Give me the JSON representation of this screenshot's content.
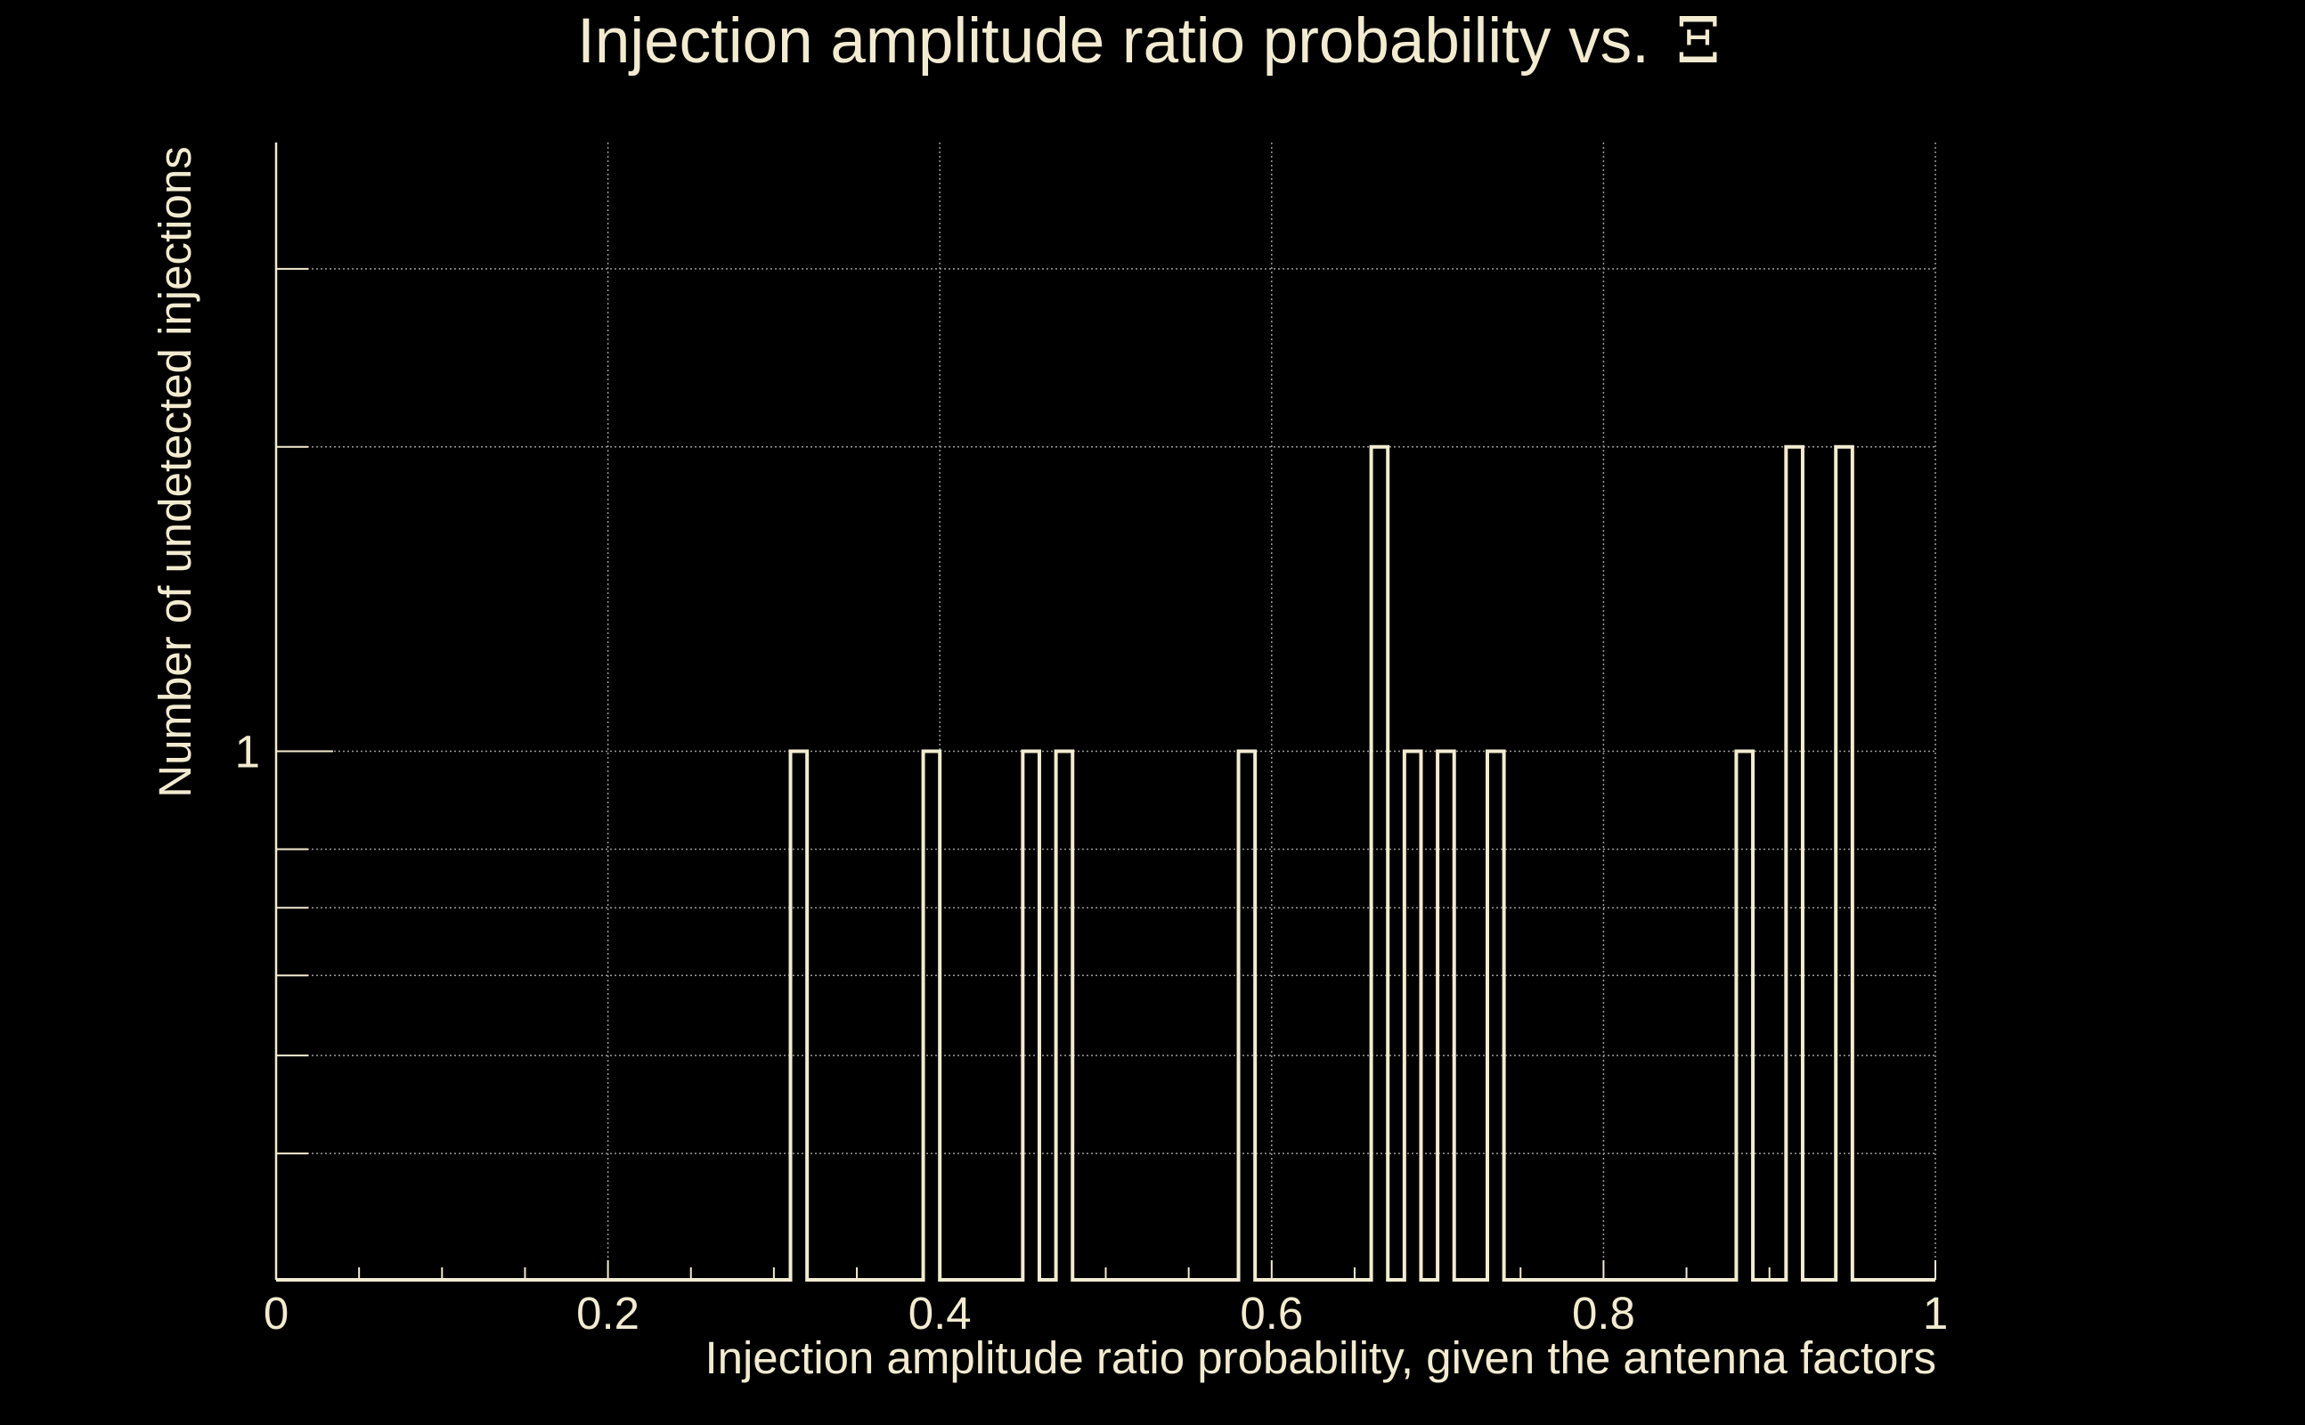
{
  "chart_data": {
    "type": "bar",
    "style": "step-outline histogram",
    "title": "Injection amplitude ratio probability vs.",
    "title_symbol": "Ξ",
    "xlabel": "Injection amplitude ratio probability, given the antenna factors",
    "ylabel": "Number of undetected injections",
    "xlim": [
      0,
      1
    ],
    "ylim": [
      0.3,
      4
    ],
    "yscale": "log",
    "grid": true,
    "x_ticks": [
      {
        "value": 0,
        "label": "0"
      },
      {
        "value": 0.2,
        "label": "0.2"
      },
      {
        "value": 0.4,
        "label": "0.4"
      },
      {
        "value": 0.6,
        "label": "0.6"
      },
      {
        "value": 0.8,
        "label": "0.8"
      },
      {
        "value": 1,
        "label": "1"
      }
    ],
    "y_ticks": [
      {
        "value": 1,
        "label": "1"
      }
    ],
    "y_grid_values": [
      0.4,
      0.5,
      0.6,
      0.7,
      0.8,
      1,
      2,
      3
    ],
    "bin_width": 0.01,
    "bins": [
      {
        "x": 0.31,
        "count": 1
      },
      {
        "x": 0.39,
        "count": 1
      },
      {
        "x": 0.45,
        "count": 1
      },
      {
        "x": 0.47,
        "count": 1
      },
      {
        "x": 0.58,
        "count": 1
      },
      {
        "x": 0.66,
        "count": 2
      },
      {
        "x": 0.68,
        "count": 1
      },
      {
        "x": 0.7,
        "count": 1
      },
      {
        "x": 0.73,
        "count": 1
      },
      {
        "x": 0.88,
        "count": 1
      },
      {
        "x": 0.91,
        "count": 2
      },
      {
        "x": 0.94,
        "count": 2
      }
    ]
  }
}
